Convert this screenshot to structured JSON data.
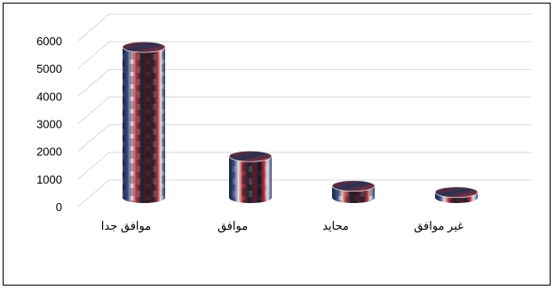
{
  "chart_data": {
    "type": "bar",
    "style": "3d-cylinder",
    "categories": [
      "موافق جدا",
      "موافق",
      "محايد",
      "غير موافق"
    ],
    "values": [
      5450,
      1500,
      430,
      200
    ],
    "ylim": [
      0,
      6000
    ],
    "yticks": [
      "0",
      "1000",
      "2000",
      "3000",
      "4000",
      "5000",
      "6000"
    ],
    "grid": true,
    "legend": "none",
    "colors": {
      "grid": "#d9d9d9",
      "bar_dark": "#1a2233",
      "bar_mid": "#5a1e2c",
      "bar_red": "#b0303a",
      "bar_blue": "#3a4a8c",
      "bar_light": "#e8e0e0"
    }
  }
}
